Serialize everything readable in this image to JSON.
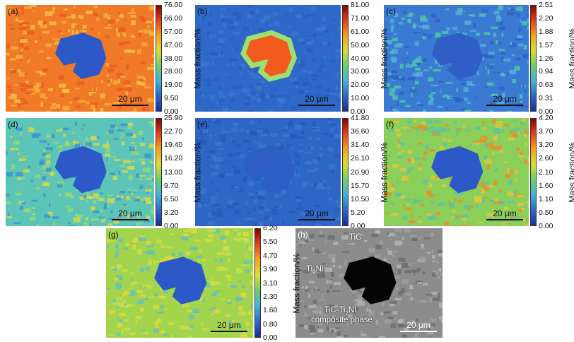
{
  "colorbar_title": "Mass fraction/%",
  "scale_bar_text": "20 μm",
  "panels": [
    {
      "label": "(a)",
      "ticks": [
        "76.00",
        "66.00",
        "57.00",
        "47.00",
        "38.00",
        "28.00",
        "19.00",
        "9.50",
        "0.00"
      ],
      "background": "#f07a28",
      "particle": "#2d58c8"
    },
    {
      "label": "(b)",
      "ticks": [
        "81.00",
        "71.00",
        "61.00",
        "50.00",
        "40.00",
        "30.00",
        "20.00",
        "10.00",
        "0.00"
      ],
      "background": "#2e68c8",
      "particle": "#f25a1e"
    },
    {
      "label": "(c)",
      "ticks": [
        "2.51",
        "2.20",
        "1.88",
        "1.57",
        "1.26",
        "0.94",
        "0.63",
        "0.31",
        "0.00"
      ],
      "background": "#3a7ad2",
      "particle": "#2f5ec4"
    },
    {
      "label": "(d)",
      "ticks": [
        "25.90",
        "22.70",
        "19.40",
        "16.20",
        "13.00",
        "9.70",
        "6.50",
        "3.20",
        "0.00"
      ],
      "background": "#5cc5b8",
      "particle": "#2d58c8"
    },
    {
      "label": "(e)",
      "ticks": [
        "41.80",
        "36.60",
        "31.40",
        "26.10",
        "20.90",
        "15.70",
        "10.50",
        "5.20",
        "0.00"
      ],
      "background": "#2e66c6",
      "particle": "#2c5ec4"
    },
    {
      "label": "(f)",
      "ticks": [
        "4.20",
        "3.70",
        "3.20",
        "2.60",
        "2.10",
        "1.60",
        "1.10",
        "0.50",
        "0.00"
      ],
      "background": "#8acf5a",
      "particle": "#2d58c8"
    },
    {
      "label": "(g)",
      "ticks": [
        "6.20",
        "5.50",
        "4.70",
        "3.90",
        "3.10",
        "2.30",
        "1.60",
        "0.80",
        "0.00"
      ],
      "background": "#a2d44e",
      "particle": "#2d58c8"
    },
    {
      "label": "(h)",
      "background": "#8c8c8c",
      "particle": "#050505",
      "annotations": {
        "tic": "TiC",
        "ti2ni_main": "Ti",
        "ti2ni_sub": "2",
        "ti2ni_tail": "Ni",
        "comp1_main": "TiC-Ti",
        "comp1_sub": "2",
        "comp1_tail": "Ni",
        "comp2": "composite phase"
      }
    }
  ],
  "colormap": [
    "#8b0000",
    "#e8401c",
    "#f7a21e",
    "#d8e030",
    "#6ccf6c",
    "#3fb4d8",
    "#2e66cc",
    "#1a2f9a"
  ]
}
